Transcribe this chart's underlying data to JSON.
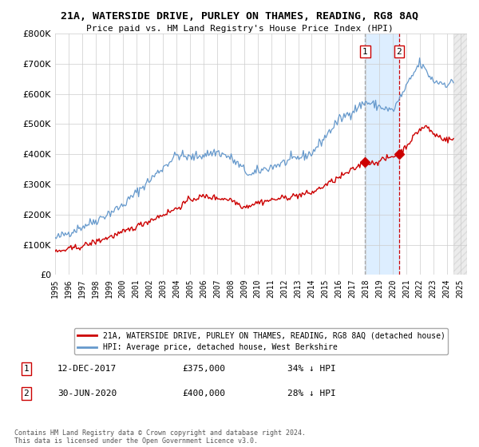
{
  "title": "21A, WATERSIDE DRIVE, PURLEY ON THAMES, READING, RG8 8AQ",
  "subtitle": "Price paid vs. HM Land Registry's House Price Index (HPI)",
  "legend_label_red": "21A, WATERSIDE DRIVE, PURLEY ON THAMES, READING, RG8 8AQ (detached house)",
  "legend_label_blue": "HPI: Average price, detached house, West Berkshire",
  "transaction1_date": "12-DEC-2017",
  "transaction1_price": "£375,000",
  "transaction1_note": "34% ↓ HPI",
  "transaction2_date": "30-JUN-2020",
  "transaction2_price": "£400,000",
  "transaction2_note": "28% ↓ HPI",
  "footer": "Contains HM Land Registry data © Crown copyright and database right 2024.\nThis data is licensed under the Open Government Licence v3.0.",
  "red_color": "#cc0000",
  "blue_color": "#6699cc",
  "highlight_bg": "#ddeeff",
  "vline1_color": "#aaaaaa",
  "vline2_color": "#cc0000",
  "ylim": [
    0,
    800000
  ],
  "yticks": [
    0,
    100000,
    200000,
    300000,
    400000,
    500000,
    600000,
    700000,
    800000
  ],
  "x_start_year": 1995,
  "x_end_year": 2025
}
